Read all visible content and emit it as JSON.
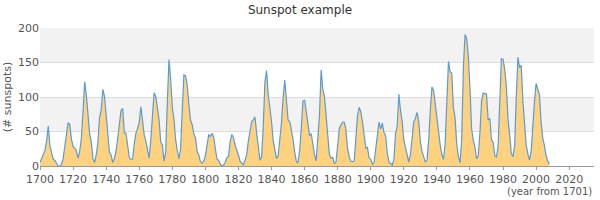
{
  "chart_data": {
    "type": "area",
    "title": "Sunspot example",
    "x_label": "(year from 1701)",
    "y_label": "(# sunspots)",
    "color": "#ffd27f",
    "grid": true,
    "xlim": [
      1700,
      2035
    ],
    "xticks": [
      1700,
      1720,
      1740,
      1760,
      1780,
      1800,
      1820,
      1840,
      1860,
      1880,
      1900,
      1920,
      1940,
      1960,
      1980,
      2000,
      2020
    ],
    "ylim": [
      0,
      200
    ],
    "yticks": [
      0,
      50,
      100,
      150,
      200
    ],
    "x": [
      1700,
      1701,
      1702,
      1703,
      1704,
      1705,
      1706,
      1707,
      1708,
      1709,
      1710,
      1711,
      1712,
      1713,
      1714,
      1715,
      1716,
      1717,
      1718,
      1719,
      1720,
      1721,
      1722,
      1723,
      1724,
      1725,
      1726,
      1727,
      1728,
      1729,
      1730,
      1731,
      1732,
      1733,
      1734,
      1735,
      1736,
      1737,
      1738,
      1739,
      1740,
      1741,
      1742,
      1743,
      1744,
      1745,
      1746,
      1747,
      1748,
      1749,
      1750,
      1751,
      1752,
      1753,
      1754,
      1755,
      1756,
      1757,
      1758,
      1759,
      1760,
      1761,
      1762,
      1763,
      1764,
      1765,
      1766,
      1767,
      1768,
      1769,
      1770,
      1771,
      1772,
      1773,
      1774,
      1775,
      1776,
      1777,
      1778,
      1779,
      1780,
      1781,
      1782,
      1783,
      1784,
      1785,
      1786,
      1787,
      1788,
      1789,
      1790,
      1791,
      1792,
      1793,
      1794,
      1795,
      1796,
      1797,
      1798,
      1799,
      1800,
      1801,
      1802,
      1803,
      1804,
      1805,
      1806,
      1807,
      1808,
      1809,
      1810,
      1811,
      1812,
      1813,
      1814,
      1815,
      1816,
      1817,
      1818,
      1819,
      1820,
      1821,
      1822,
      1823,
      1824,
      1825,
      1826,
      1827,
      1828,
      1829,
      1830,
      1831,
      1832,
      1833,
      1834,
      1835,
      1836,
      1837,
      1838,
      1839,
      1840,
      1841,
      1842,
      1843,
      1844,
      1845,
      1846,
      1847,
      1848,
      1849,
      1850,
      1851,
      1852,
      1853,
      1854,
      1855,
      1856,
      1857,
      1858,
      1859,
      1860,
      1861,
      1862,
      1863,
      1864,
      1865,
      1866,
      1867,
      1868,
      1869,
      1870,
      1871,
      1872,
      1873,
      1874,
      1875,
      1876,
      1877,
      1878,
      1879,
      1880,
      1881,
      1882,
      1883,
      1884,
      1885,
      1886,
      1887,
      1888,
      1889,
      1890,
      1891,
      1892,
      1893,
      1894,
      1895,
      1896,
      1897,
      1898,
      1899,
      1900,
      1901,
      1902,
      1903,
      1904,
      1905,
      1906,
      1907,
      1908,
      1909,
      1910,
      1911,
      1912,
      1913,
      1914,
      1915,
      1916,
      1917,
      1918,
      1919,
      1920,
      1921,
      1922,
      1923,
      1924,
      1925,
      1926,
      1927,
      1928,
      1929,
      1930,
      1931,
      1932,
      1933,
      1934,
      1935,
      1936,
      1937,
      1938,
      1939,
      1940,
      1941,
      1942,
      1943,
      1944,
      1945,
      1946,
      1947,
      1948,
      1949,
      1950,
      1951,
      1952,
      1953,
      1954,
      1955,
      1956,
      1957,
      1958,
      1959,
      1960,
      1961,
      1962,
      1963,
      1964,
      1965,
      1966,
      1967,
      1968,
      1969,
      1970,
      1971,
      1972,
      1973,
      1974,
      1975,
      1976,
      1977,
      1978,
      1979,
      1980,
      1981,
      1982,
      1983,
      1984,
      1985,
      1986,
      1987,
      1988,
      1989,
      1990,
      1991,
      1992,
      1993,
      1994,
      1995,
      1996,
      1997,
      1998,
      1999,
      2000,
      2001,
      2002,
      2003,
      2004,
      2005,
      2006,
      2007,
      2008
    ],
    "values": [
      5,
      11,
      16,
      23,
      36,
      58,
      29,
      20,
      10,
      8,
      3,
      0,
      0,
      2,
      11,
      27,
      47,
      63,
      60,
      39,
      28,
      26,
      22,
      11,
      21,
      40,
      78,
      122,
      103,
      73,
      47,
      35,
      11,
      5,
      16,
      34,
      70,
      81,
      111,
      101,
      73,
      40,
      20,
      16,
      5,
      11,
      22,
      40,
      60,
      80.9,
      83.4,
      47.7,
      47.8,
      30.7,
      12.2,
      9.6,
      10.2,
      32.4,
      47.6,
      54,
      62.9,
      85.9,
      61.2,
      45.1,
      36.4,
      20.9,
      11.4,
      37.8,
      69.8,
      106.1,
      100.8,
      81.6,
      66.5,
      34.8,
      30.6,
      7,
      19.8,
      92.5,
      154.4,
      125.9,
      84.8,
      68.1,
      38.5,
      22.8,
      10.2,
      24.1,
      82.9,
      132,
      130.9,
      118.1,
      89.9,
      66.6,
      60,
      46.9,
      41,
      21.3,
      16,
      6.4,
      4.1,
      6.8,
      14.5,
      34,
      45,
      43.1,
      47.5,
      42.2,
      28.1,
      10.1,
      8.1,
      2.5,
      0,
      1.4,
      5,
      12.2,
      13.9,
      35.4,
      45.8,
      41.1,
      30.1,
      23.9,
      15.6,
      6.6,
      4,
      1.8,
      8.5,
      16.6,
      36.3,
      49.6,
      64.2,
      67,
      70.9,
      47.8,
      27.5,
      8.5,
      13.2,
      56.9,
      121.5,
      138.3,
      103.2,
      85.7,
      64.6,
      36.7,
      24.2,
      10.7,
      15,
      40.1,
      61.5,
      98.5,
      124.7,
      96.3,
      66.6,
      64.5,
      54.1,
      39,
      20.6,
      6.7,
      4.3,
      22.7,
      54.8,
      93.8,
      95.8,
      77.2,
      59.1,
      44,
      47,
      30.5,
      16.3,
      7.3,
      37.6,
      74,
      139,
      111.2,
      101.6,
      66.2,
      44.7,
      17,
      11.3,
      12.4,
      3.4,
      6,
      32.3,
      54.3,
      59.7,
      63.7,
      63.5,
      52.2,
      25.4,
      13.1,
      6.8,
      6.3,
      7.1,
      35.6,
      73,
      85.1,
      78,
      64,
      41.8,
      26.2,
      26.7,
      12.1,
      9.5,
      2.7,
      5,
      24.4,
      42,
      63.5,
      53.8,
      62,
      48.5,
      43.9,
      18.6,
      5.7,
      3.6,
      1.4,
      9.6,
      47.4,
      57.1,
      103.9,
      80.6,
      63.6,
      37.6,
      26.1,
      14.2,
      5.8,
      16.7,
      44.3,
      63.9,
      69,
      77.8,
      64.9,
      35.7,
      21.2,
      11.1,
      5.7,
      8.7,
      36.1,
      79.7,
      114.4,
      109.6,
      88.8,
      67.8,
      47.5,
      30.6,
      16.3,
      9.6,
      33.2,
      92.6,
      151.6,
      136.3,
      134.7,
      83.9,
      69.4,
      31.5,
      13.9,
      4.4,
      38,
      141.7,
      190.2,
      184.8,
      159,
      112.3,
      53.9,
      37.5,
      27.9,
      10.2,
      15.1,
      47,
      93.8,
      105.9,
      105.5,
      104.5,
      66.6,
      68.9,
      38,
      34.5,
      15.5,
      12.6,
      27.5,
      92.5,
      155.4,
      154.7,
      140.5,
      115.9,
      66.6,
      45.9,
      17.9,
      13.4,
      29.2,
      100.2,
      157.6,
      142.6,
      145.7,
      94.3,
      54.6,
      29.9,
      17.5,
      8.6,
      21.5,
      64.3,
      93.3,
      119.6,
      111,
      104,
      63.7,
      40.4,
      29.8,
      15.2,
      7.5,
      2.9
    ]
  }
}
